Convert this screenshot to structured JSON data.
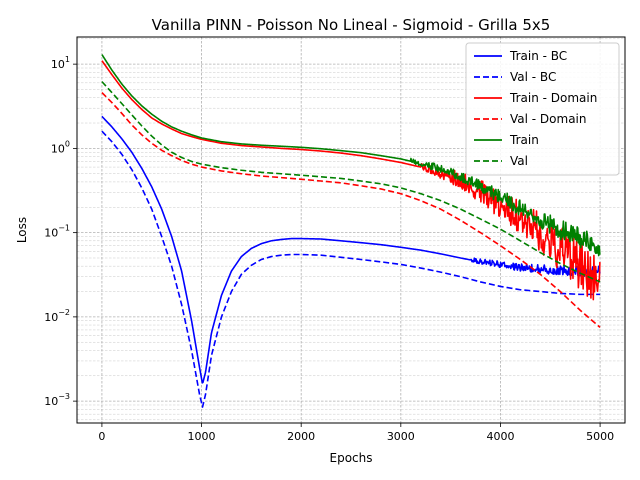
{
  "chart_data": {
    "type": "line",
    "title": "Vanilla PINN - Poisson No Lineal - Sigmoid - Grilla 5x5",
    "xlabel": "Epochs",
    "ylabel": "Loss",
    "xlim": [
      -250,
      5250
    ],
    "ylim": [
      0.00055,
      21
    ],
    "y_scale": "log",
    "grid": true,
    "legend_position": "top-right",
    "x_ticks": [
      {
        "value": 0,
        "label": "0"
      },
      {
        "value": 1000,
        "label": "1000"
      },
      {
        "value": 2000,
        "label": "2000"
      },
      {
        "value": 3000,
        "label": "3000"
      },
      {
        "value": 4000,
        "label": "4000"
      },
      {
        "value": 5000,
        "label": "5000"
      }
    ],
    "y_ticks": [
      {
        "value": 0.001,
        "base": "10",
        "exp": "−3"
      },
      {
        "value": 0.01,
        "base": "10",
        "exp": "−2"
      },
      {
        "value": 0.1,
        "base": "10",
        "exp": "−1"
      },
      {
        "value": 1,
        "base": "10",
        "exp": "0"
      },
      {
        "value": 10,
        "base": "10",
        "exp": "1"
      }
    ],
    "series": [
      {
        "name": "Train - BC",
        "color": "#0000ff",
        "dash": "solid",
        "points": [
          [
            0,
            2.4
          ],
          [
            100,
            1.8
          ],
          [
            200,
            1.3
          ],
          [
            300,
            0.9
          ],
          [
            400,
            0.58
          ],
          [
            500,
            0.35
          ],
          [
            600,
            0.19
          ],
          [
            700,
            0.09
          ],
          [
            800,
            0.035
          ],
          [
            900,
            0.009
          ],
          [
            980,
            0.0025
          ],
          [
            1010,
            0.0016
          ],
          [
            1040,
            0.0022
          ],
          [
            1100,
            0.0065
          ],
          [
            1200,
            0.018
          ],
          [
            1300,
            0.035
          ],
          [
            1400,
            0.052
          ],
          [
            1500,
            0.065
          ],
          [
            1600,
            0.074
          ],
          [
            1700,
            0.08
          ],
          [
            1800,
            0.083
          ],
          [
            1900,
            0.085
          ],
          [
            2000,
            0.085
          ],
          [
            2200,
            0.084
          ],
          [
            2400,
            0.08
          ],
          [
            2600,
            0.076
          ],
          [
            2800,
            0.072
          ],
          [
            3000,
            0.067
          ],
          [
            3200,
            0.062
          ],
          [
            3400,
            0.056
          ],
          [
            3600,
            0.05
          ],
          [
            3800,
            0.045
          ],
          [
            4000,
            0.041
          ],
          [
            4200,
            0.038
          ],
          [
            4400,
            0.036
          ],
          [
            4600,
            0.035
          ],
          [
            4800,
            0.034
          ],
          [
            5000,
            0.034
          ]
        ],
        "noise": [
          {
            "from": 3700,
            "to": 5000,
            "amp": [
              0.05,
              0.12
            ]
          }
        ]
      },
      {
        "name": "Val - BC",
        "color": "#0000ff",
        "dash": "dashed",
        "points": [
          [
            0,
            1.6
          ],
          [
            100,
            1.2
          ],
          [
            200,
            0.85
          ],
          [
            300,
            0.56
          ],
          [
            400,
            0.34
          ],
          [
            500,
            0.19
          ],
          [
            600,
            0.09
          ],
          [
            700,
            0.04
          ],
          [
            800,
            0.014
          ],
          [
            900,
            0.004
          ],
          [
            980,
            0.0012
          ],
          [
            1010,
            0.00085
          ],
          [
            1040,
            0.0012
          ],
          [
            1100,
            0.0035
          ],
          [
            1200,
            0.01
          ],
          [
            1300,
            0.02
          ],
          [
            1400,
            0.032
          ],
          [
            1500,
            0.041
          ],
          [
            1600,
            0.048
          ],
          [
            1700,
            0.052
          ],
          [
            1800,
            0.054
          ],
          [
            1900,
            0.055
          ],
          [
            2000,
            0.055
          ],
          [
            2200,
            0.054
          ],
          [
            2400,
            0.051
          ],
          [
            2600,
            0.048
          ],
          [
            2800,
            0.045
          ],
          [
            3000,
            0.042
          ],
          [
            3200,
            0.038
          ],
          [
            3400,
            0.034
          ],
          [
            3600,
            0.03
          ],
          [
            3800,
            0.026
          ],
          [
            4000,
            0.023
          ],
          [
            4200,
            0.021
          ],
          [
            4400,
            0.02
          ],
          [
            4600,
            0.019
          ],
          [
            4800,
            0.0185
          ],
          [
            5000,
            0.0185
          ]
        ]
      },
      {
        "name": "Train - Domain",
        "color": "#ff0000",
        "dash": "solid",
        "points": [
          [
            0,
            11
          ],
          [
            100,
            7.5
          ],
          [
            200,
            5.2
          ],
          [
            300,
            3.8
          ],
          [
            400,
            2.9
          ],
          [
            500,
            2.3
          ],
          [
            600,
            1.95
          ],
          [
            700,
            1.7
          ],
          [
            800,
            1.5
          ],
          [
            900,
            1.38
          ],
          [
            1000,
            1.28
          ],
          [
            1200,
            1.15
          ],
          [
            1400,
            1.08
          ],
          [
            1600,
            1.04
          ],
          [
            1800,
            1.0
          ],
          [
            2000,
            0.97
          ],
          [
            2200,
            0.93
          ],
          [
            2400,
            0.88
          ],
          [
            2600,
            0.82
          ],
          [
            2800,
            0.75
          ],
          [
            3000,
            0.68
          ],
          [
            3200,
            0.6
          ],
          [
            3400,
            0.5
          ],
          [
            3600,
            0.4
          ],
          [
            3800,
            0.3
          ],
          [
            4000,
            0.21
          ],
          [
            4200,
            0.15
          ],
          [
            4400,
            0.1
          ],
          [
            4600,
            0.065
          ],
          [
            4800,
            0.042
          ],
          [
            5000,
            0.028
          ]
        ],
        "noise": [
          {
            "from": 3200,
            "to": 5000,
            "amp": [
              0.06,
              0.6
            ]
          }
        ]
      },
      {
        "name": "Val - Domain",
        "color": "#ff0000",
        "dash": "dashed",
        "points": [
          [
            0,
            4.6
          ],
          [
            100,
            3.5
          ],
          [
            200,
            2.6
          ],
          [
            300,
            1.9
          ],
          [
            400,
            1.45
          ],
          [
            500,
            1.15
          ],
          [
            600,
            0.95
          ],
          [
            700,
            0.82
          ],
          [
            800,
            0.72
          ],
          [
            900,
            0.65
          ],
          [
            1000,
            0.6
          ],
          [
            1200,
            0.54
          ],
          [
            1400,
            0.5
          ],
          [
            1600,
            0.47
          ],
          [
            1800,
            0.45
          ],
          [
            2000,
            0.43
          ],
          [
            2200,
            0.41
          ],
          [
            2400,
            0.39
          ],
          [
            2600,
            0.36
          ],
          [
            2800,
            0.33
          ],
          [
            3000,
            0.29
          ],
          [
            3200,
            0.24
          ],
          [
            3400,
            0.19
          ],
          [
            3600,
            0.14
          ],
          [
            3800,
            0.1
          ],
          [
            4000,
            0.07
          ],
          [
            4200,
            0.048
          ],
          [
            4400,
            0.032
          ],
          [
            4600,
            0.02
          ],
          [
            4800,
            0.012
          ],
          [
            5000,
            0.0075
          ]
        ]
      },
      {
        "name": "Train",
        "color": "#008000",
        "dash": "solid",
        "points": [
          [
            0,
            13
          ],
          [
            100,
            8.5
          ],
          [
            200,
            5.8
          ],
          [
            300,
            4.2
          ],
          [
            400,
            3.2
          ],
          [
            500,
            2.55
          ],
          [
            600,
            2.1
          ],
          [
            700,
            1.8
          ],
          [
            800,
            1.6
          ],
          [
            900,
            1.45
          ],
          [
            1000,
            1.33
          ],
          [
            1200,
            1.2
          ],
          [
            1400,
            1.13
          ],
          [
            1600,
            1.09
          ],
          [
            1800,
            1.06
          ],
          [
            2000,
            1.03
          ],
          [
            2200,
            0.99
          ],
          [
            2400,
            0.94
          ],
          [
            2600,
            0.89
          ],
          [
            2800,
            0.82
          ],
          [
            3000,
            0.75
          ],
          [
            3200,
            0.66
          ],
          [
            3400,
            0.56
          ],
          [
            3600,
            0.45
          ],
          [
            3800,
            0.35
          ],
          [
            4000,
            0.26
          ],
          [
            4200,
            0.19
          ],
          [
            4400,
            0.14
          ],
          [
            4600,
            0.105
          ],
          [
            4800,
            0.085
          ],
          [
            5000,
            0.07
          ]
        ],
        "noise": [
          {
            "from": 3100,
            "to": 5000,
            "amp": [
              0.05,
              0.25
            ]
          }
        ]
      },
      {
        "name": "Val",
        "color": "#008000",
        "dash": "dashed",
        "points": [
          [
            0,
            6.2
          ],
          [
            100,
            4.6
          ],
          [
            200,
            3.4
          ],
          [
            300,
            2.5
          ],
          [
            400,
            1.85
          ],
          [
            500,
            1.4
          ],
          [
            600,
            1.1
          ],
          [
            700,
            0.9
          ],
          [
            800,
            0.78
          ],
          [
            900,
            0.7
          ],
          [
            1000,
            0.65
          ],
          [
            1200,
            0.59
          ],
          [
            1400,
            0.55
          ],
          [
            1600,
            0.52
          ],
          [
            1800,
            0.5
          ],
          [
            2000,
            0.48
          ],
          [
            2200,
            0.46
          ],
          [
            2400,
            0.44
          ],
          [
            2600,
            0.41
          ],
          [
            2800,
            0.38
          ],
          [
            3000,
            0.34
          ],
          [
            3200,
            0.29
          ],
          [
            3400,
            0.24
          ],
          [
            3600,
            0.19
          ],
          [
            3800,
            0.145
          ],
          [
            4000,
            0.11
          ],
          [
            4200,
            0.08
          ],
          [
            4400,
            0.058
          ],
          [
            4600,
            0.043
          ],
          [
            4800,
            0.033
          ],
          [
            5000,
            0.026
          ]
        ]
      }
    ]
  }
}
